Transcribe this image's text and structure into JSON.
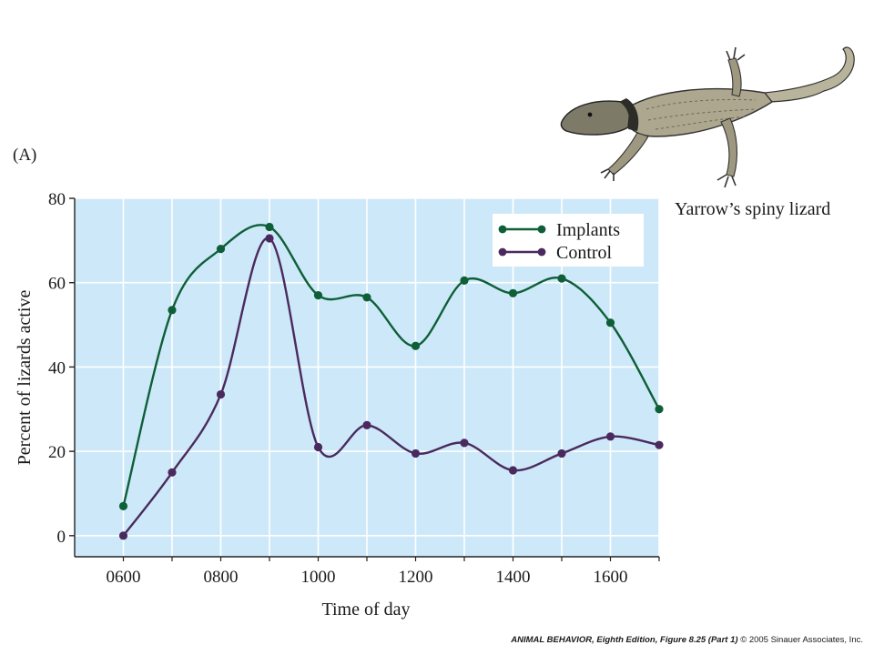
{
  "panel_label": "(A)",
  "illustration": {
    "name": "lizard-illustration",
    "caption": "Yarrow’s spiny lizard"
  },
  "credit": {
    "source": "ANIMAL BEHAVIOR, Eighth Edition, Figure 8.25 (Part 1)",
    "copyright": "© 2005 Sinauer Associates, Inc."
  },
  "colors": {
    "plot_background": "#cde9f9",
    "grid": "#ffffff",
    "implants": "#0e5f38",
    "control": "#4a2a5e",
    "axis": "#222222"
  },
  "chart_data": {
    "type": "line",
    "title": "",
    "xlabel": "Time of day",
    "ylabel": "Percent of lizards active",
    "x": [
      600,
      700,
      800,
      900,
      1000,
      1100,
      1200,
      1300,
      1400,
      1500,
      1600,
      1700
    ],
    "x_tick_values": [
      600,
      800,
      1000,
      1200,
      1400,
      1600
    ],
    "x_tick_labels": [
      "0600",
      "0800",
      "1000",
      "1200",
      "1400",
      "1600"
    ],
    "xlim": [
      500,
      1700
    ],
    "y_ticks": [
      0,
      20,
      40,
      60,
      80
    ],
    "ylim": [
      -5,
      80
    ],
    "grid": true,
    "legend_position": "top-right",
    "series": [
      {
        "name": "Implants",
        "color": "#0e5f38",
        "values": [
          7,
          53.5,
          68,
          73.2,
          57,
          56.5,
          45,
          60.5,
          57.5,
          61,
          50.5,
          30
        ]
      },
      {
        "name": "Control",
        "color": "#4a2a5e",
        "values": [
          0,
          15,
          33.5,
          70.5,
          21,
          26.2,
          19.5,
          22,
          15.5,
          19.5,
          23.5,
          21.5
        ]
      }
    ]
  }
}
